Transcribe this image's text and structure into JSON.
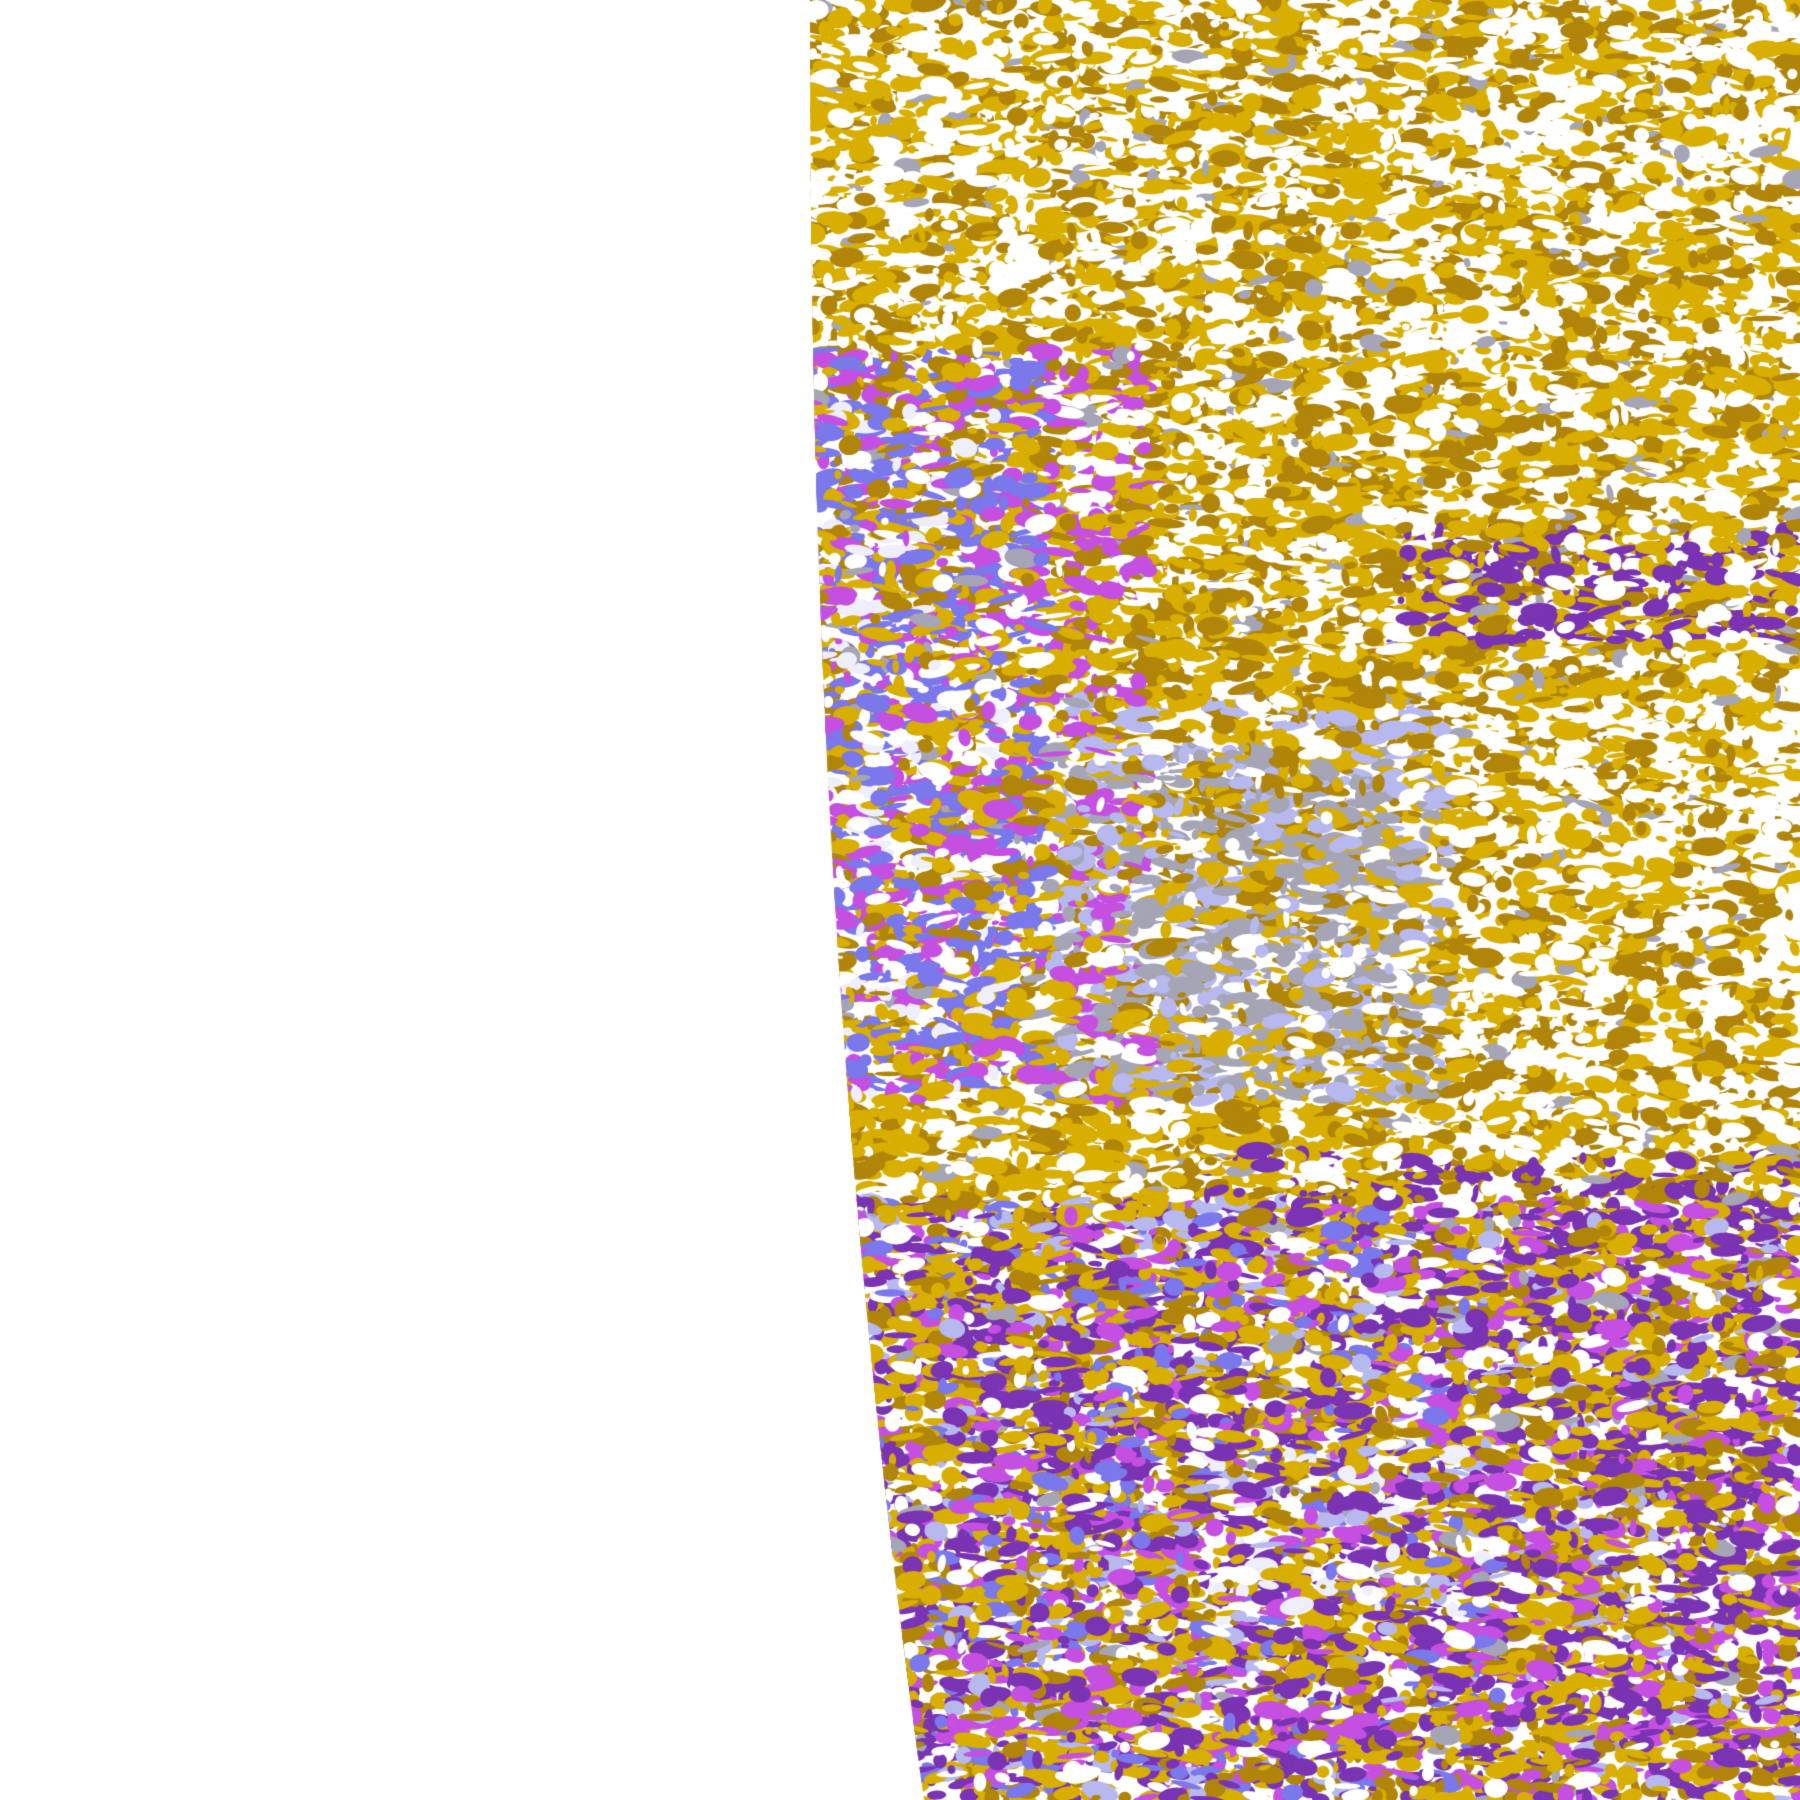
{
  "image": {
    "kind": "false-color satellite cloud classification, earth limb on left",
    "background": "#ffffff",
    "palette": {
      "gold": "#d8ae00",
      "dark_gold": "#b0850a",
      "deep_purple": "#7a33b3",
      "magenta": "#c54fe0",
      "blue_violet": "#7a78ea",
      "lavender_light": "#eeeefc",
      "pale_blue": "#b7b8ee",
      "gray": "#a5a5b5"
    }
  }
}
